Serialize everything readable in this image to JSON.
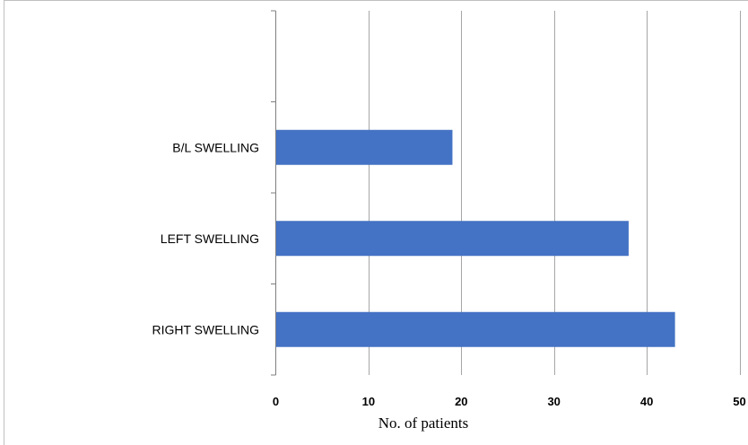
{
  "chart_data": {
    "type": "bar",
    "orientation": "horizontal",
    "categories": [
      "RIGHT SWELLING",
      "LEFT SWELLING",
      "B/L SWELLING"
    ],
    "values": [
      43,
      38,
      19
    ],
    "xlabel": "No. of patients",
    "ylabel": "",
    "xlim": [
      0,
      50
    ],
    "xticks": [
      "0",
      "10",
      "20",
      "30",
      "40",
      "50"
    ],
    "grid": "vertical",
    "legend": "none",
    "bar_color": "#4472C4",
    "grid_color": "#A6A6A6"
  }
}
